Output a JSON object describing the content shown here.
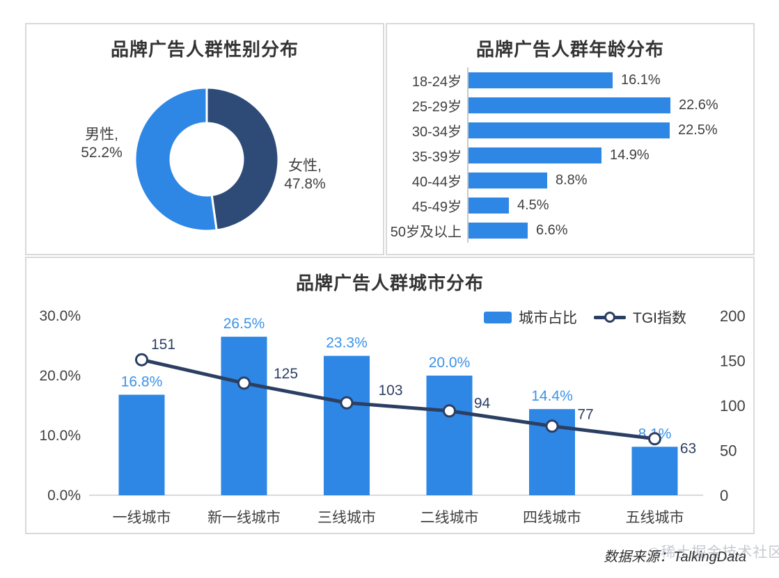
{
  "source": {
    "text": "数据来源：TalkingData",
    "watermark": "◎稀土掘金技术社区"
  },
  "colors": {
    "bar_blue": "#2e87e4",
    "label_blue": "#3b93e8",
    "donut_navy": "#2e4b78",
    "line_navy": "#2b3f63",
    "axis_text": "#3f3f3f",
    "axis_line": "#d9d9d9"
  },
  "chart_data": [
    {
      "type": "pie",
      "variant": "donut",
      "title": "品牌广告人群性别分布",
      "slices": [
        {
          "label": "女性",
          "value_pct": 47.8,
          "label_line1": "女性,",
          "label_line2": "47.8%",
          "color": "#2e4b78"
        },
        {
          "label": "男性",
          "value_pct": 52.2,
          "label_line1": "男性,",
          "label_line2": "52.2%",
          "color": "#2e87e4"
        }
      ],
      "start_angle": "12-oclock, clockwise",
      "legend_position": "outside-labels"
    },
    {
      "type": "bar",
      "orientation": "horizontal",
      "title": "品牌广告人群年龄分布",
      "categories": [
        "18-24岁",
        "25-29岁",
        "30-34岁",
        "35-39岁",
        "40-44岁",
        "45-49岁",
        "50岁及以上"
      ],
      "values": [
        16.1,
        22.6,
        22.5,
        14.9,
        8.8,
        4.5,
        6.6
      ],
      "value_labels": [
        "16.1%",
        "22.6%",
        "22.5%",
        "14.9%",
        "8.8%",
        "4.5%",
        "6.6%"
      ],
      "xlabel": "",
      "ylabel": "",
      "xlim": [
        0,
        25
      ],
      "grid": false
    },
    {
      "type": "bar",
      "combo": "bar+line",
      "title": "品牌广告人群城市分布",
      "categories": [
        "一线城市",
        "新一线城市",
        "三线城市",
        "二线城市",
        "四线城市",
        "五线城市"
      ],
      "series": [
        {
          "name": "城市占比",
          "type": "bar",
          "axis": "left",
          "values": [
            16.8,
            26.5,
            23.3,
            20.0,
            14.4,
            8.1
          ],
          "labels": [
            "16.8%",
            "26.5%",
            "23.3%",
            "20.0%",
            "14.4%",
            "8.1%"
          ]
        },
        {
          "name": "TGI指数",
          "type": "line",
          "axis": "right",
          "values": [
            151,
            125,
            103,
            94,
            77,
            63
          ],
          "labels": [
            "151",
            "125",
            "103",
            "94",
            "77",
            "63"
          ]
        }
      ],
      "left_axis": {
        "ticks": [
          "0.0%",
          "10.0%",
          "20.0%",
          "30.0%"
        ],
        "min": 0,
        "max": 30
      },
      "right_axis": {
        "ticks": [
          "0",
          "50",
          "100",
          "150",
          "200"
        ],
        "min": 0,
        "max": 200
      },
      "legend_position": "top-right",
      "grid": false
    }
  ]
}
